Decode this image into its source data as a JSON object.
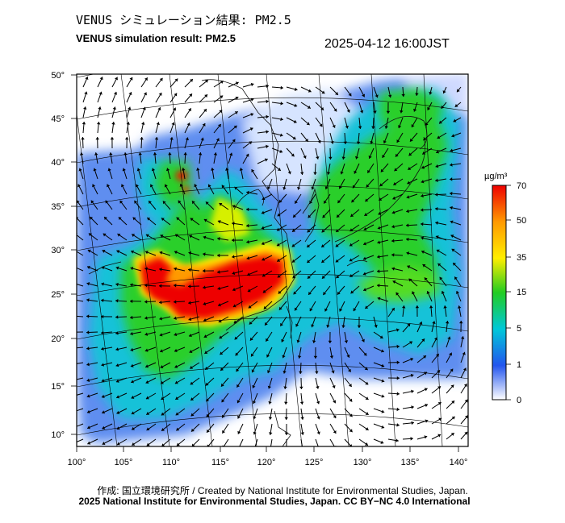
{
  "header": {
    "title_jp": "VENUS シミュレーション結果: PM2.5",
    "title_en": "VENUS simulation result: PM2.5",
    "timestamp": "2025-04-12 16:00JST"
  },
  "map": {
    "lon_labels": [
      "100°",
      "105°",
      "110°",
      "115°",
      "120°",
      "125°",
      "130°",
      "135°",
      "140°"
    ],
    "lat_labels": [
      "50°",
      "45°",
      "40°",
      "35°",
      "30°",
      "25°",
      "20°",
      "15°",
      "10°"
    ]
  },
  "colorbar": {
    "unit": "µg/m³",
    "ticks": [
      "70",
      "50",
      "35",
      "15",
      "5",
      "1",
      "0"
    ],
    "colors": [
      "#ff0000",
      "#ff9900",
      "#ffff00",
      "#22cc22",
      "#00cccc",
      "#3377ff",
      "#ffffff"
    ]
  },
  "footer": {
    "credit": "作成: 国立環境研究所 / Created by National Institute for Environmental Studies, Japan.",
    "copyright": "2025 National Institute for Environmental Studies, Japan. CC BY−NC 4.0 International"
  }
}
